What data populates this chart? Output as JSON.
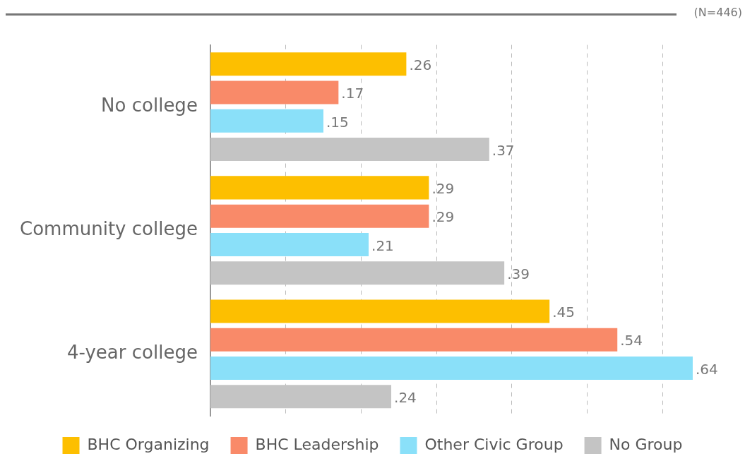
{
  "chart_data": {
    "type": "bar",
    "orientation": "horizontal",
    "categories": [
      "No college",
      "Community college",
      "4-year college"
    ],
    "series": [
      {
        "name": "BHC Organizing",
        "color": "#fdbf00",
        "values": [
          0.26,
          0.29,
          0.45
        ],
        "value_labels": [
          ".26",
          ".29",
          ".45"
        ]
      },
      {
        "name": "BHC Leadership",
        "color": "#f98a69",
        "values": [
          0.17,
          0.29,
          0.54
        ],
        "value_labels": [
          ".17",
          ".29",
          ".54"
        ]
      },
      {
        "name": "Other Civic Group",
        "color": "#8ae0f9",
        "values": [
          0.15,
          0.21,
          0.64
        ],
        "value_labels": [
          ".15",
          ".21",
          ".64"
        ]
      },
      {
        "name": "No Group",
        "color": "#c4c4c4",
        "values": [
          0.37,
          0.39,
          0.24
        ],
        "value_labels": [
          ".37",
          ".39",
          ".24"
        ]
      }
    ],
    "xticks": [
      {
        "value": 0.1,
        "label": null
      },
      {
        "value": 0.2,
        "label": null
      },
      {
        "value": 0.3,
        "label": null
      },
      {
        "value": 0.4,
        "label": null
      },
      {
        "value": 0.5,
        "label": null
      },
      {
        "value": 0.6,
        "label": null
      }
    ],
    "tick_labels": "y",
    "grid": "x",
    "legend": "bottom",
    "annotations": [
      "(N=446)"
    ]
  }
}
